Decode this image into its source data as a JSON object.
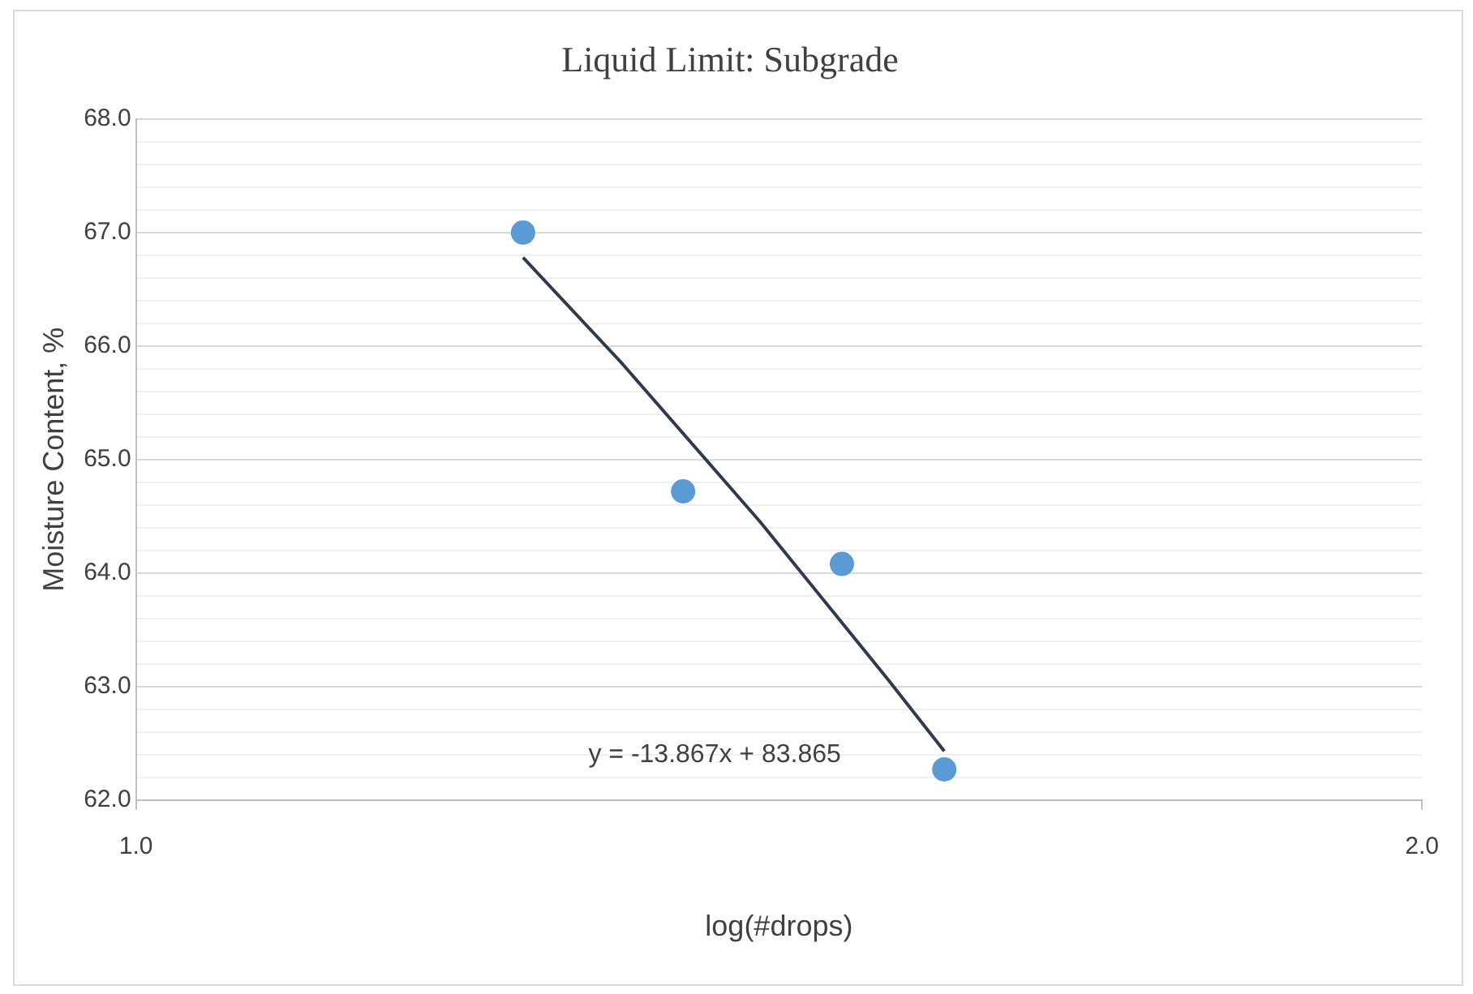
{
  "chart_data": {
    "type": "scatter",
    "title": "Liquid Limit: Subgrade",
    "xlabel": "log(#drops)",
    "ylabel": "Moisture Content, %",
    "log": "x",
    "xlim": [
      1,
      2
    ],
    "xticks": [
      {
        "value": 1,
        "label": "1.0"
      },
      {
        "value": 2,
        "label": "2.0"
      }
    ],
    "ylim": [
      62,
      68
    ],
    "yticks": [
      {
        "value": 62,
        "label": "62.0"
      },
      {
        "value": 62.2,
        "label": null
      },
      {
        "value": 62.4,
        "label": null
      },
      {
        "value": 62.6,
        "label": null
      },
      {
        "value": 62.8,
        "label": null
      },
      {
        "value": 63,
        "label": "63.0"
      },
      {
        "value": 63.2,
        "label": null
      },
      {
        "value": 63.4,
        "label": null
      },
      {
        "value": 63.6,
        "label": null
      },
      {
        "value": 63.8,
        "label": null
      },
      {
        "value": 64,
        "label": "64.0"
      },
      {
        "value": 64.2,
        "label": null
      },
      {
        "value": 64.4,
        "label": null
      },
      {
        "value": 64.6,
        "label": null
      },
      {
        "value": 64.8,
        "label": null
      },
      {
        "value": 65,
        "label": "65.0"
      },
      {
        "value": 65.2,
        "label": null
      },
      {
        "value": 65.4,
        "label": null
      },
      {
        "value": 65.6,
        "label": null
      },
      {
        "value": 65.8,
        "label": null
      },
      {
        "value": 66,
        "label": "66.0"
      },
      {
        "value": 66.2,
        "label": null
      },
      {
        "value": 66.4,
        "label": null
      },
      {
        "value": 66.6,
        "label": null
      },
      {
        "value": 66.8,
        "label": null
      },
      {
        "value": 67,
        "label": "67.0"
      },
      {
        "value": 67.2,
        "label": null
      },
      {
        "value": 67.4,
        "label": null
      },
      {
        "value": 67.6,
        "label": null
      },
      {
        "value": 67.8,
        "label": null
      },
      {
        "value": 68,
        "label": "68.0"
      }
    ],
    "grid": "y",
    "legend": false,
    "marker": "circle",
    "series": [
      {
        "type": "scatter",
        "color": "#5b9bd5",
        "x": [
          1.232,
          1.343,
          1.463,
          1.546
        ],
        "values": [
          67.0,
          64.72,
          64.08,
          62.27
        ]
      },
      {
        "type": "line",
        "color": "#2f3b4c",
        "marker": "none",
        "x": [
          1.232,
          1.3,
          1.4,
          1.5,
          1.546
        ],
        "values": [
          66.78,
          65.84,
          64.45,
          63.06,
          62.43
        ]
      }
    ],
    "annotations": [
      "y = -13.867x + 83.865"
    ]
  }
}
